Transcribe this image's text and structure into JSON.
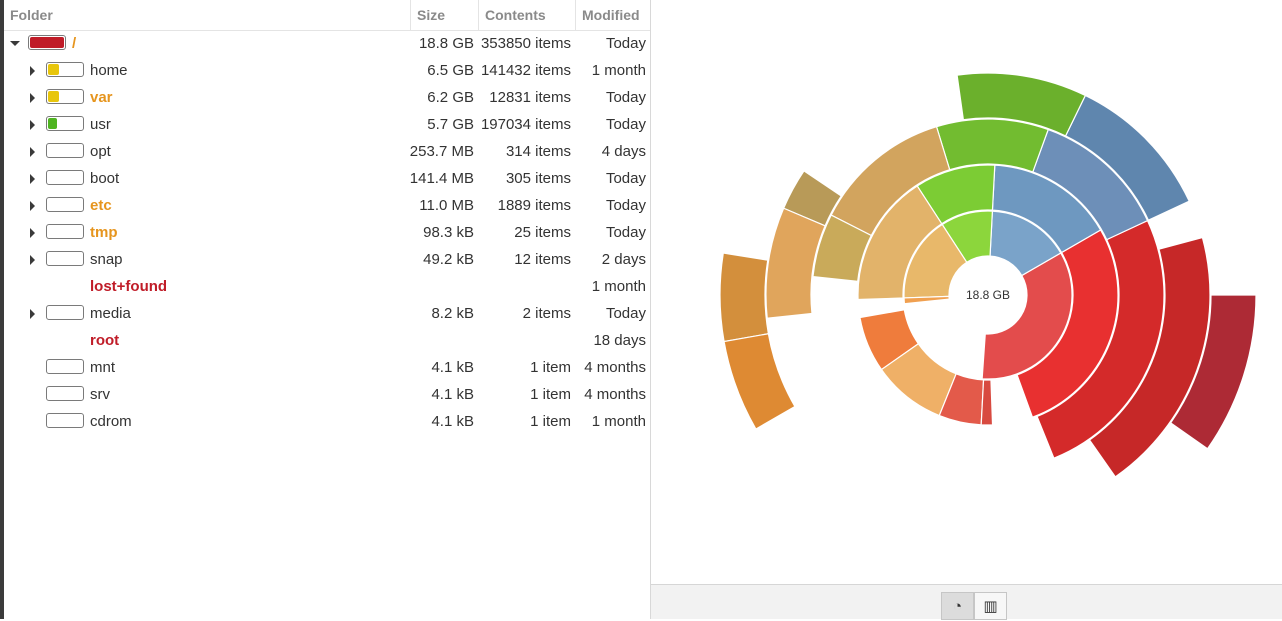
{
  "tree": {
    "columns": {
      "folder": "Folder",
      "size": "Size",
      "contents": "Contents",
      "modified": "Modified"
    },
    "rows": [
      {
        "name": "/",
        "size": "18.8 GB",
        "contents": "353850 items",
        "modified": "Today",
        "depth": 0,
        "expandable": true,
        "expanded": true,
        "style": "modified",
        "usage_fraction": 1.0,
        "usage_color": "#c01c28",
        "has_bar": true
      },
      {
        "name": "home",
        "size": "6.5 GB",
        "contents": "141432 items",
        "modified": "1 month",
        "depth": 1,
        "expandable": true,
        "expanded": false,
        "style": "normal",
        "usage_fraction": 0.31,
        "usage_color": "#e8c60c",
        "has_bar": true
      },
      {
        "name": "var",
        "size": "6.2 GB",
        "contents": "12831 items",
        "modified": "Today",
        "depth": 1,
        "expandable": true,
        "expanded": false,
        "style": "modified",
        "usage_fraction": 0.3,
        "usage_color": "#e8c60c",
        "has_bar": true
      },
      {
        "name": "usr",
        "size": "5.7 GB",
        "contents": "197034 items",
        "modified": "Today",
        "depth": 1,
        "expandable": true,
        "expanded": false,
        "style": "normal",
        "usage_fraction": 0.24,
        "usage_color": "#4fb421",
        "has_bar": true
      },
      {
        "name": "opt",
        "size": "253.7 MB",
        "contents": "314 items",
        "modified": "4 days",
        "depth": 1,
        "expandable": true,
        "expanded": false,
        "style": "normal",
        "usage_fraction": 0,
        "usage_color": "#4fb421",
        "has_bar": true
      },
      {
        "name": "boot",
        "size": "141.4 MB",
        "contents": "305 items",
        "modified": "Today",
        "depth": 1,
        "expandable": true,
        "expanded": false,
        "style": "normal",
        "usage_fraction": 0,
        "usage_color": "#4fb421",
        "has_bar": true
      },
      {
        "name": "etc",
        "size": "11.0 MB",
        "contents": "1889 items",
        "modified": "Today",
        "depth": 1,
        "expandable": true,
        "expanded": false,
        "style": "modified",
        "usage_fraction": 0,
        "usage_color": "#4fb421",
        "has_bar": true
      },
      {
        "name": "tmp",
        "size": "98.3 kB",
        "contents": "25 items",
        "modified": "Today",
        "depth": 1,
        "expandable": true,
        "expanded": false,
        "style": "modified",
        "usage_fraction": 0,
        "usage_color": "#4fb421",
        "has_bar": true
      },
      {
        "name": "snap",
        "size": "49.2 kB",
        "contents": "12 items",
        "modified": "2 days",
        "depth": 1,
        "expandable": true,
        "expanded": false,
        "style": "normal",
        "usage_fraction": 0,
        "usage_color": "#4fb421",
        "has_bar": true
      },
      {
        "name": "lost+found",
        "size": "",
        "contents": "",
        "modified": "1 month",
        "depth": 1,
        "expandable": false,
        "expanded": false,
        "style": "restricted",
        "usage_fraction": 0,
        "usage_color": "#4fb421",
        "has_bar": false
      },
      {
        "name": "media",
        "size": "8.2 kB",
        "contents": "2 items",
        "modified": "Today",
        "depth": 1,
        "expandable": true,
        "expanded": false,
        "style": "normal",
        "usage_fraction": 0,
        "usage_color": "#4fb421",
        "has_bar": true
      },
      {
        "name": "root",
        "size": "",
        "contents": "",
        "modified": "18 days",
        "depth": 1,
        "expandable": false,
        "expanded": false,
        "style": "restricted",
        "usage_fraction": 0,
        "usage_color": "#4fb421",
        "has_bar": false
      },
      {
        "name": "mnt",
        "size": "4.1 kB",
        "contents": "1 item",
        "modified": "4 months",
        "depth": 1,
        "expandable": false,
        "expanded": false,
        "style": "normal",
        "usage_fraction": 0,
        "usage_color": "#4fb421",
        "has_bar": true
      },
      {
        "name": "srv",
        "size": "4.1 kB",
        "contents": "1 item",
        "modified": "4 months",
        "depth": 1,
        "expandable": false,
        "expanded": false,
        "style": "normal",
        "usage_fraction": 0,
        "usage_color": "#4fb421",
        "has_bar": true
      },
      {
        "name": "cdrom",
        "size": "4.1 kB",
        "contents": "1 item",
        "modified": "1 month",
        "depth": 1,
        "expandable": false,
        "expanded": false,
        "style": "normal",
        "usage_fraction": 0,
        "usage_color": "#4fb421",
        "has_bar": true
      }
    ]
  },
  "chart": {
    "center_label": "18.8 GB",
    "segments": [
      {
        "ring": 0,
        "start": 330,
        "end": 454,
        "color": "#e34c4c"
      },
      {
        "ring": 0,
        "start": 273,
        "end": 330,
        "color": "#7aa3c9"
      },
      {
        "ring": 0,
        "start": 237,
        "end": 273,
        "color": "#8cd63c"
      },
      {
        "ring": 0,
        "start": 178,
        "end": 237,
        "color": "#e8b86a"
      },
      {
        "ring": 0,
        "start": 174,
        "end": 178,
        "color": "#f0a050"
      },
      {
        "ring": 1,
        "start": 330,
        "end": 430,
        "color": "#e83030"
      },
      {
        "ring": 1,
        "start": 273,
        "end": 330,
        "color": "#6e98c0"
      },
      {
        "ring": 1,
        "start": 237,
        "end": 273,
        "color": "#7ccc34"
      },
      {
        "ring": 1,
        "start": 178,
        "end": 237,
        "color": "#e2b36a"
      },
      {
        "ring": 1,
        "start": 145,
        "end": 170,
        "color": "#ef7c3c"
      },
      {
        "ring": 1,
        "start": 112,
        "end": 145,
        "color": "#efb067"
      },
      {
        "ring": 1,
        "start": 93,
        "end": 112,
        "color": "#e35a4a"
      },
      {
        "ring": 1,
        "start": 88,
        "end": 93,
        "color": "#d84a40"
      },
      {
        "ring": 2,
        "start": 335,
        "end": 428,
        "color": "#d42a2a"
      },
      {
        "ring": 2,
        "start": 290,
        "end": 335,
        "color": "#6d8fb8"
      },
      {
        "ring": 2,
        "start": 253,
        "end": 290,
        "color": "#72bc30"
      },
      {
        "ring": 2,
        "start": 207,
        "end": 253,
        "color": "#d2a45e"
      },
      {
        "ring": 2,
        "start": 186,
        "end": 207,
        "color": "#c9aa5a"
      },
      {
        "ring": 3,
        "start": 345,
        "end": 415,
        "color": "#c62828"
      },
      {
        "ring": 3,
        "start": 296,
        "end": 335,
        "color": "#5f86ae"
      },
      {
        "ring": 3,
        "start": 262,
        "end": 296,
        "color": "#6bb02c"
      },
      {
        "ring": 3,
        "start": 203,
        "end": 214,
        "color": "#b89a58"
      },
      {
        "ring": 3,
        "start": 174,
        "end": 203,
        "color": "#e0a55c"
      },
      {
        "ring": 4,
        "start": 360,
        "end": 395,
        "color": "#ad2a35"
      },
      {
        "ring": 4,
        "start": 170,
        "end": 189,
        "color": "#d38f3c"
      },
      {
        "ring": 4,
        "start": 150,
        "end": 170,
        "color": "#de8a33"
      }
    ]
  },
  "bottom_bar": {
    "buttons": [
      {
        "icon": "ring-chart-icon",
        "glyph": "◔",
        "active": true
      },
      {
        "icon": "treemap-icon",
        "glyph": "▥",
        "active": false
      }
    ]
  }
}
